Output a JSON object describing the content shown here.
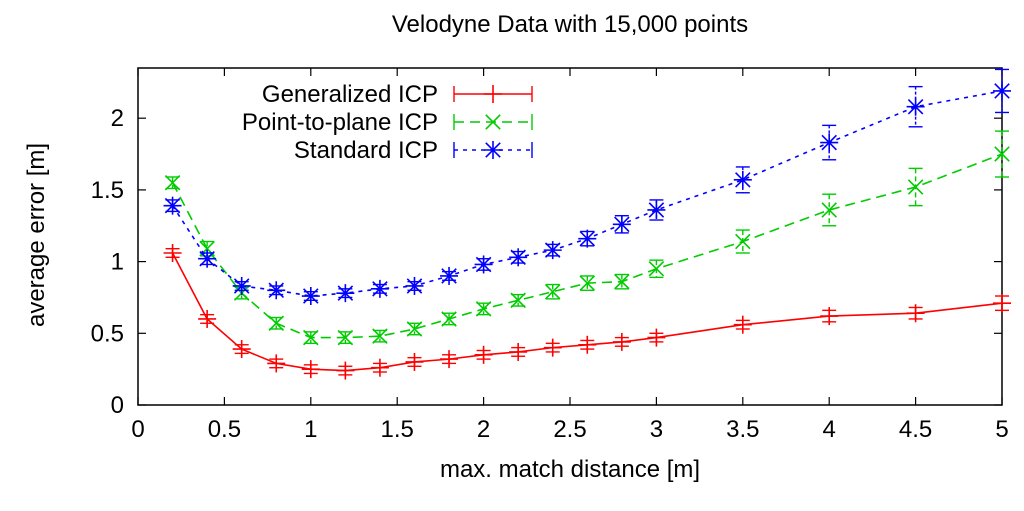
{
  "chart_data": {
    "type": "line",
    "title": "Velodyne Data with 15,000 points",
    "xlabel": "max. match distance [m]",
    "ylabel": "average error [m]",
    "xlim": [
      0,
      5
    ],
    "ylim": [
      0,
      2.35
    ],
    "xticks": [
      0,
      0.5,
      1,
      1.5,
      2,
      2.5,
      3,
      3.5,
      4,
      4.5,
      5
    ],
    "xtick_labels": [
      "0",
      "0.5",
      "1",
      "1.5",
      "2",
      "2.5",
      "3",
      "3.5",
      "4",
      "4.5",
      "5"
    ],
    "yticks": [
      0,
      0.5,
      1,
      1.5,
      2
    ],
    "ytick_labels": [
      "0",
      "0.5",
      "1",
      "1.5",
      "2"
    ],
    "legend_position": "top-left",
    "series": [
      {
        "name": "Generalized ICP",
        "color": "#ff0000",
        "dash": "solid",
        "marker": "plus",
        "x": [
          0.2,
          0.4,
          0.6,
          0.8,
          1.0,
          1.2,
          1.4,
          1.6,
          1.8,
          2.0,
          2.2,
          2.4,
          2.6,
          2.8,
          3.0,
          3.5,
          4.0,
          4.5,
          5.0
        ],
        "y": [
          1.06,
          0.6,
          0.39,
          0.29,
          0.25,
          0.24,
          0.26,
          0.3,
          0.32,
          0.35,
          0.37,
          0.4,
          0.42,
          0.44,
          0.47,
          0.56,
          0.62,
          0.64,
          0.71
        ],
        "err": [
          0.03,
          0.03,
          0.03,
          0.03,
          0.03,
          0.03,
          0.03,
          0.03,
          0.03,
          0.03,
          0.03,
          0.03,
          0.03,
          0.03,
          0.03,
          0.03,
          0.04,
          0.04,
          0.05
        ]
      },
      {
        "name": "Point-to-plane ICP",
        "color": "#00cc00",
        "dash": "dashed",
        "marker": "cross",
        "x": [
          0.2,
          0.4,
          0.6,
          0.8,
          1.0,
          1.2,
          1.4,
          1.6,
          1.8,
          2.0,
          2.2,
          2.4,
          2.6,
          2.8,
          3.0,
          3.5,
          4.0,
          4.5,
          5.0
        ],
        "y": [
          1.55,
          1.09,
          0.78,
          0.57,
          0.47,
          0.47,
          0.48,
          0.53,
          0.6,
          0.67,
          0.73,
          0.79,
          0.85,
          0.86,
          0.95,
          1.14,
          1.36,
          1.52,
          1.75
        ],
        "err": [
          0.04,
          0.05,
          0.04,
          0.04,
          0.04,
          0.04,
          0.04,
          0.04,
          0.04,
          0.04,
          0.04,
          0.05,
          0.05,
          0.05,
          0.06,
          0.08,
          0.11,
          0.13,
          0.16
        ]
      },
      {
        "name": "Standard ICP",
        "color": "#0000ff",
        "dash": "dotted",
        "marker": "star",
        "x": [
          0.2,
          0.4,
          0.6,
          0.8,
          1.0,
          1.2,
          1.4,
          1.6,
          1.8,
          2.0,
          2.2,
          2.4,
          2.6,
          2.8,
          3.0,
          3.5,
          4.0,
          4.5,
          5.0
        ],
        "y": [
          1.39,
          1.02,
          0.83,
          0.8,
          0.76,
          0.78,
          0.81,
          0.83,
          0.9,
          0.98,
          1.03,
          1.08,
          1.16,
          1.26,
          1.36,
          1.57,
          1.83,
          2.08,
          2.19
        ],
        "err": [
          0.04,
          0.04,
          0.03,
          0.03,
          0.03,
          0.03,
          0.03,
          0.03,
          0.03,
          0.04,
          0.04,
          0.04,
          0.05,
          0.06,
          0.07,
          0.09,
          0.12,
          0.14,
          0.15
        ]
      }
    ]
  }
}
